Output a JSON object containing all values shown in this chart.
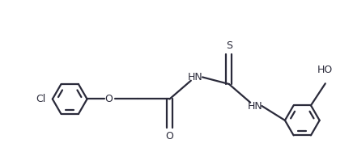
{
  "bg": "#ffffff",
  "lc": "#2a2a3a",
  "lw": 1.6,
  "fs": 9.0,
  "fig_w": 4.36,
  "fig_h": 1.88,
  "dpi": 100,
  "ring_r": 0.3,
  "xlim": [
    0.0,
    5.8
  ],
  "ylim": [
    -0.4,
    2.2
  ]
}
